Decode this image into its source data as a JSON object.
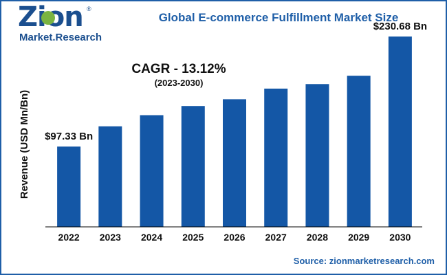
{
  "logo": {
    "name": "Zion",
    "subtitle": "Market.Research",
    "trademark": "®"
  },
  "colors": {
    "bar": "#1457a6",
    "accent": "#1f5fa8",
    "axis": "#000000"
  },
  "annotation": {
    "cagr": "CAGR - 13.12%",
    "period": "(2023-2030)"
  },
  "source_label": "Source: zionmarketresearch.com",
  "chart_data": {
    "type": "bar",
    "title": "Global E-commerce Fulfillment Market Size",
    "xlabel": "",
    "ylabel": "Revenue (USD Mn/Bn)",
    "categories": [
      "2022",
      "2023",
      "2024",
      "2025",
      "2026",
      "2027",
      "2028",
      "2029",
      "2030"
    ],
    "values": [
      97.33,
      121.9,
      135.4,
      146.5,
      154.7,
      167.6,
      173.1,
      183.2,
      230.68
    ],
    "ylim": [
      0,
      250
    ],
    "grid": false,
    "data_labels": [
      {
        "category": "2022",
        "text": "$97.33 Bn"
      },
      {
        "category": "2030",
        "text": "$230.68 Bn"
      }
    ]
  }
}
